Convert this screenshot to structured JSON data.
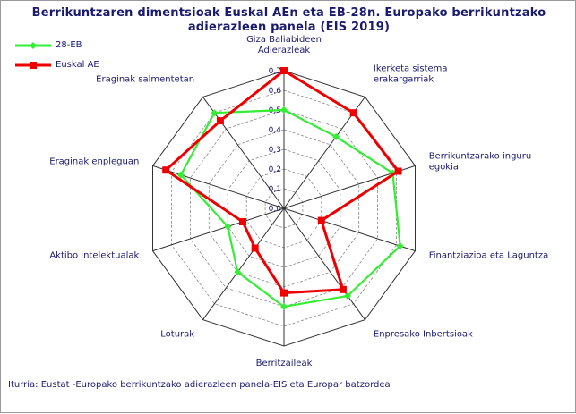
{
  "chart_data": {
    "type": "radar",
    "title_line1": "Berrikuntzaren dimentsioak Euskal AEn eta EB-28n. Europako berrikuntzako",
    "title_line2": "adierazleen panela (EIS 2019)",
    "source": "Iturria: Eustat -Europako berrikuntzako adierazleen panela-EIS eta Europar batzordea",
    "r_min": 0,
    "r_max": 0.7,
    "r_ticks": [
      "0,0",
      "0,1",
      "0,2",
      "0,3",
      "0,4",
      "0,5",
      "0,6",
      "0,7"
    ],
    "categories": [
      [
        "Giza Baliabideen",
        "Adierazleak"
      ],
      [
        "Ikerketa sistema",
        "erakargarriak"
      ],
      [
        "Berrikuntzarako inguru",
        "egokia"
      ],
      [
        "Finantziazioa eta Laguntza"
      ],
      [
        "Enpresako Inbertsioak"
      ],
      [
        "Berritzaileak"
      ],
      [
        "Loturak"
      ],
      [
        "Aktibo intelektualak"
      ],
      [
        "Eraginak enpleguan"
      ],
      [
        "Eraginak salmentetan"
      ]
    ],
    "series": [
      {
        "name": "28-EB",
        "color": "#33ee33",
        "marker": "diamond",
        "values": [
          0.5,
          0.45,
          0.58,
          0.62,
          0.55,
          0.5,
          0.4,
          0.3,
          0.55,
          0.6
        ]
      },
      {
        "name": "Euskal AE",
        "color": "#ee0000",
        "marker": "square",
        "values": [
          0.7,
          0.6,
          0.61,
          0.2,
          0.51,
          0.43,
          0.25,
          0.22,
          0.63,
          0.55
        ]
      }
    ],
    "grid": true,
    "legend_position": "top-left"
  }
}
